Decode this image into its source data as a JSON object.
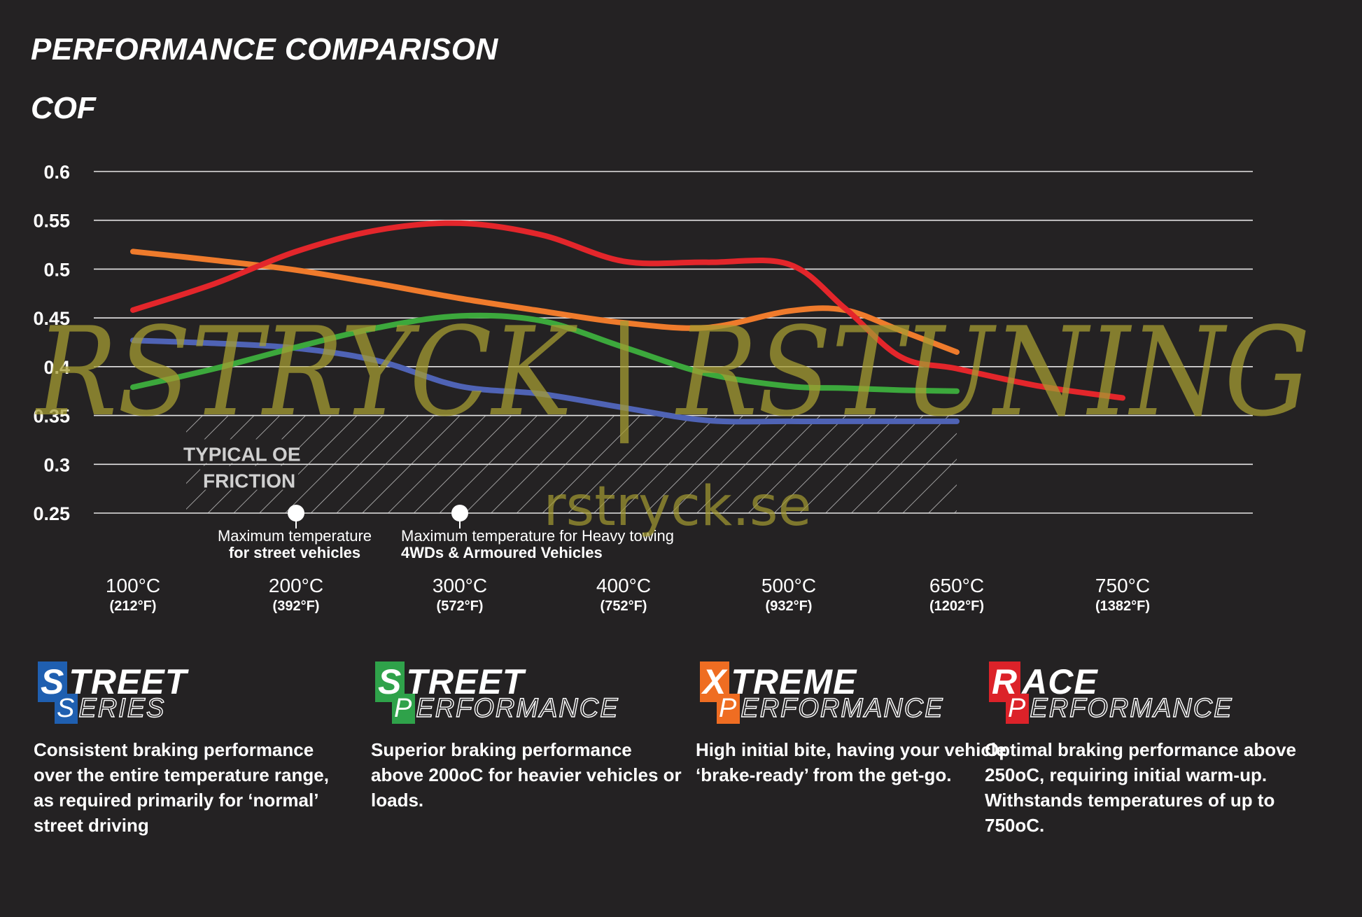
{
  "title": "PERFORMANCE COMPARISON",
  "subtitle": "COF",
  "chart_data": {
    "type": "line",
    "y_ticks": [
      "0.6",
      "0.55",
      "0.5",
      "0.45",
      "0.4",
      "0.35",
      "0.3",
      "0.25"
    ],
    "ylim": [
      0.25,
      0.6
    ],
    "x_ticks": [
      {
        "c": "100°C",
        "f": "(212°F)"
      },
      {
        "c": "200°C",
        "f": "(392°F)"
      },
      {
        "c": "300°C",
        "f": "(572°F)"
      },
      {
        "c": "400°C",
        "f": "(752°F)"
      },
      {
        "c": "500°C",
        "f": "(932°F)"
      },
      {
        "c": "650°C",
        "f": "(1202°F)"
      },
      {
        "c": "750°C",
        "f": "(1382°F)"
      }
    ],
    "x_unit": "°C",
    "grid": true,
    "series": [
      {
        "key": "street_series",
        "color": "#4f63b5",
        "points": [
          [
            100,
            0.427
          ],
          [
            150,
            0.424
          ],
          [
            200,
            0.419
          ],
          [
            250,
            0.406
          ],
          [
            300,
            0.38
          ],
          [
            350,
            0.372
          ],
          [
            400,
            0.358
          ],
          [
            450,
            0.345
          ],
          [
            500,
            0.344
          ],
          [
            550,
            0.344
          ],
          [
            600,
            0.344
          ],
          [
            650,
            0.344
          ]
        ]
      },
      {
        "key": "street_performance",
        "color": "#3ca83c",
        "points": [
          [
            100,
            0.379
          ],
          [
            150,
            0.398
          ],
          [
            200,
            0.42
          ],
          [
            250,
            0.44
          ],
          [
            300,
            0.452
          ],
          [
            350,
            0.447
          ],
          [
            400,
            0.42
          ],
          [
            450,
            0.393
          ],
          [
            500,
            0.38
          ],
          [
            550,
            0.378
          ],
          [
            600,
            0.376
          ],
          [
            650,
            0.375
          ]
        ]
      },
      {
        "key": "xtreme_performance",
        "color": "#ef7b2c",
        "points": [
          [
            100,
            0.518
          ],
          [
            150,
            0.509
          ],
          [
            200,
            0.499
          ],
          [
            250,
            0.485
          ],
          [
            300,
            0.47
          ],
          [
            350,
            0.457
          ],
          [
            400,
            0.445
          ],
          [
            450,
            0.44
          ],
          [
            500,
            0.457
          ],
          [
            550,
            0.458
          ],
          [
            600,
            0.437
          ],
          [
            650,
            0.415
          ]
        ]
      },
      {
        "key": "race_performance",
        "color": "#e3262b",
        "points": [
          [
            100,
            0.458
          ],
          [
            150,
            0.485
          ],
          [
            200,
            0.518
          ],
          [
            250,
            0.54
          ],
          [
            300,
            0.547
          ],
          [
            350,
            0.535
          ],
          [
            400,
            0.508
          ],
          [
            450,
            0.507
          ],
          [
            500,
            0.505
          ],
          [
            550,
            0.46
          ],
          [
            600,
            0.41
          ],
          [
            650,
            0.398
          ],
          [
            700,
            0.38
          ],
          [
            750,
            0.368
          ]
        ]
      }
    ],
    "region": {
      "label_line1": "TYPICAL OE",
      "label_line2": "FRICTION",
      "from": 100,
      "to": 650,
      "ymin": 0.25,
      "ymax": 0.35
    },
    "markers": [
      {
        "x": 200,
        "label_line1": "Maximum temperature",
        "label_line2": "for street vehicles"
      },
      {
        "x": 300,
        "label_line1": "Maximum temperature for Heavy towing",
        "label_line2": "4WDs & Armoured Vehicles"
      }
    ]
  },
  "watermark": {
    "main": "RSTRYCK | RSTUNING",
    "url": "rstryck.se",
    "color": "#a59c32"
  },
  "legend": [
    {
      "key": "street_series",
      "top_cap": "S",
      "top_rest": "TREET",
      "bottom_cap": "S",
      "bottom_rest": "ERIES",
      "color": "#1f5fb0",
      "description": "Consistent braking performance over the entire temperature range, as required primarily for ‘normal’ street driving"
    },
    {
      "key": "street_performance",
      "top_cap": "S",
      "top_rest": "TREET",
      "bottom_cap": "P",
      "bottom_rest": "ERFORMANCE",
      "color": "#2fa24a",
      "description": "Superior braking performance above 200oC for heavier vehicles or loads."
    },
    {
      "key": "xtreme_performance",
      "top_cap": "X",
      "top_rest": "TREME",
      "bottom_cap": "P",
      "bottom_rest": "ERFORMANCE",
      "color": "#ef6d22",
      "description": "High initial bite, having your vehicle ‘brake-ready’ from the get-go."
    },
    {
      "key": "race_performance",
      "top_cap": "R",
      "top_rest": "ACE",
      "bottom_cap": "P",
      "bottom_rest": "ERFORMANCE",
      "color": "#dc2229",
      "description": "Optimal braking performance above 250oC, requiring initial warm-up. Withstands temperatures of up to 750oC."
    }
  ]
}
